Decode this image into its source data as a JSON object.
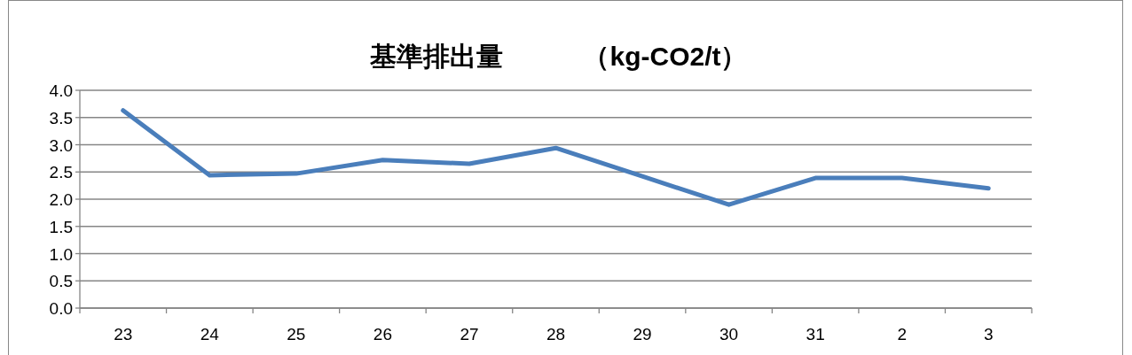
{
  "chart_data": {
    "type": "line",
    "title": "基準排出量　　　（kg-CO2/t）",
    "categories": [
      "23",
      "24",
      "25",
      "26",
      "27",
      "28",
      "29",
      "30",
      "31",
      "2",
      "3"
    ],
    "series": [
      {
        "color": "#4a7ebb",
        "values": [
          3.63,
          2.44,
          2.47,
          2.72,
          2.65,
          2.94,
          2.42,
          1.9,
          2.39,
          2.39,
          2.2
        ]
      }
    ],
    "ylim": [
      0,
      4
    ],
    "yticks": [
      {
        "value": 0,
        "label": "0.0"
      },
      {
        "value": 0.5,
        "label": "0.5"
      },
      {
        "value": 1,
        "label": "1.0"
      },
      {
        "value": 1.5,
        "label": "1.5"
      },
      {
        "value": 2,
        "label": "2.0"
      },
      {
        "value": 2.5,
        "label": "2.5"
      },
      {
        "value": 3,
        "label": "3.0"
      },
      {
        "value": 3.5,
        "label": "3.5"
      },
      {
        "value": 4,
        "label": "4.0"
      }
    ],
    "grid": "y",
    "marker": "none",
    "line_style": "solid"
  }
}
